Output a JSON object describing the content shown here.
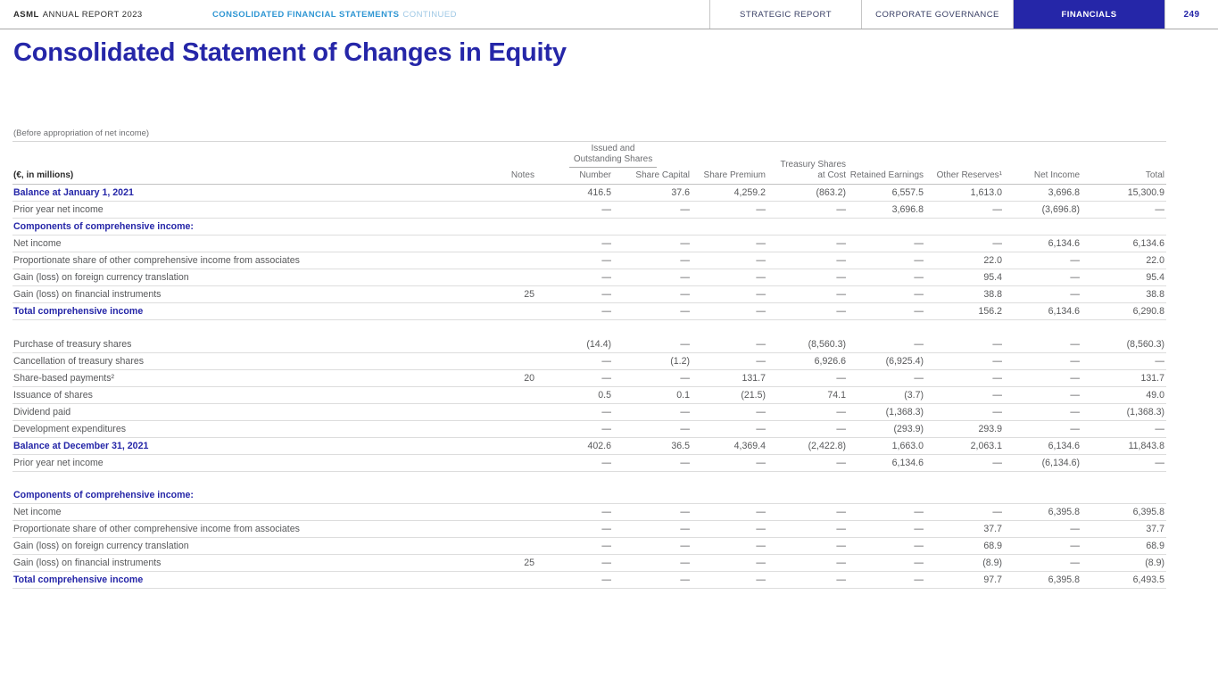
{
  "header": {
    "brand": "ASML",
    "report_name": "ANNUAL REPORT 2023",
    "section_title": "CONSOLIDATED FINANCIAL STATEMENTS",
    "section_continued": "CONTINUED",
    "nav": [
      {
        "label": "STRATEGIC REPORT",
        "active": false
      },
      {
        "label": "CORPORATE GOVERNANCE",
        "active": false
      },
      {
        "label": "FINANCIALS",
        "active": true
      }
    ],
    "page_number": "249"
  },
  "page": {
    "title": "Consolidated Statement of Changes in Equity",
    "pre_table_note": "(Before appropriation of net income)"
  },
  "colors": {
    "brand_blue": "#2526a8",
    "accent_light_blue": "#2f96d3",
    "muted_light_blue": "#9fc8e5",
    "body_gray": "#58595b",
    "hairline_gray": "#dddddd"
  },
  "table": {
    "first_col_header": "(€, in millions)",
    "group_header": {
      "line1": "Issued and",
      "line2": "Outstanding Shares"
    },
    "columns": {
      "notes": "Notes",
      "number": "Number",
      "share_capital": "Share Capital",
      "share_premium": "Share Premium",
      "treasury_line1": "Treasury Shares",
      "treasury_line2": "at Cost",
      "retained_earnings": "Retained Earnings",
      "other_reserves": "Other Reserves¹",
      "net_income": "Net Income",
      "total": "Total"
    },
    "rows": [
      {
        "type": "bold",
        "label": "Balance at January 1, 2021",
        "notes": "",
        "values": [
          "416.5",
          "37.6",
          "4,259.2",
          "(863.2)",
          "6,557.5",
          "1,613.0",
          "3,696.8",
          "15,300.9"
        ]
      },
      {
        "type": "normal",
        "label": "Prior year net income",
        "notes": "",
        "values": [
          "—",
          "—",
          "—",
          "—",
          "3,696.8",
          "—",
          "(3,696.8)",
          "—"
        ]
      },
      {
        "type": "section",
        "label": "Components of comprehensive income:",
        "notes": "",
        "values": [
          "",
          "",
          "",
          "",
          "",
          "",
          "",
          ""
        ]
      },
      {
        "type": "normal",
        "label": "Net income",
        "notes": "",
        "values": [
          "—",
          "—",
          "—",
          "—",
          "—",
          "—",
          "6,134.6",
          "6,134.6"
        ]
      },
      {
        "type": "normal",
        "label": "Proportionate share of other comprehensive income from associates",
        "notes": "",
        "values": [
          "—",
          "—",
          "—",
          "—",
          "—",
          "22.0",
          "—",
          "22.0"
        ]
      },
      {
        "type": "normal",
        "label": "Gain (loss) on foreign currency translation",
        "notes": "",
        "values": [
          "—",
          "—",
          "—",
          "—",
          "—",
          "95.4",
          "—",
          "95.4"
        ]
      },
      {
        "type": "normal",
        "label": "Gain (loss) on financial instruments",
        "notes": "25",
        "values": [
          "—",
          "—",
          "—",
          "—",
          "—",
          "38.8",
          "—",
          "38.8"
        ]
      },
      {
        "type": "bold",
        "label": "Total comprehensive income",
        "notes": "",
        "values": [
          "—",
          "—",
          "—",
          "—",
          "—",
          "156.2",
          "6,134.6",
          "6,290.8"
        ]
      },
      {
        "type": "spacer",
        "label": "",
        "notes": "",
        "values": []
      },
      {
        "type": "normal",
        "label": "Purchase of treasury shares",
        "notes": "",
        "values": [
          "(14.4)",
          "—",
          "—",
          "(8,560.3)",
          "—",
          "—",
          "—",
          "(8,560.3)"
        ]
      },
      {
        "type": "normal",
        "label": "Cancellation of treasury shares",
        "notes": "",
        "values": [
          "—",
          "(1.2)",
          "—",
          "6,926.6",
          "(6,925.4)",
          "—",
          "—",
          "—"
        ]
      },
      {
        "type": "normal",
        "label": "Share-based payments²",
        "notes": "20",
        "values": [
          "—",
          "—",
          "131.7",
          "—",
          "—",
          "—",
          "—",
          "131.7"
        ]
      },
      {
        "type": "normal",
        "label": "Issuance of shares",
        "notes": "",
        "values": [
          "0.5",
          "0.1",
          "(21.5)",
          "74.1",
          "(3.7)",
          "—",
          "—",
          "49.0"
        ]
      },
      {
        "type": "normal",
        "label": "Dividend paid",
        "notes": "",
        "values": [
          "—",
          "—",
          "—",
          "—",
          "(1,368.3)",
          "—",
          "—",
          "(1,368.3)"
        ]
      },
      {
        "type": "normal",
        "label": "Development expenditures",
        "notes": "",
        "values": [
          "—",
          "—",
          "—",
          "—",
          "(293.9)",
          "293.9",
          "—",
          "—"
        ]
      },
      {
        "type": "bold",
        "label": "Balance at December 31, 2021",
        "notes": "",
        "values": [
          "402.6",
          "36.5",
          "4,369.4",
          "(2,422.8)",
          "1,663.0",
          "2,063.1",
          "6,134.6",
          "11,843.8"
        ]
      },
      {
        "type": "normal",
        "label": "Prior year net income",
        "notes": "",
        "values": [
          "—",
          "—",
          "—",
          "—",
          "6,134.6",
          "—",
          "(6,134.6)",
          "—"
        ]
      },
      {
        "type": "spacer",
        "label": "",
        "notes": "",
        "values": []
      },
      {
        "type": "section",
        "label": "Components of comprehensive income:",
        "notes": "",
        "values": [
          "",
          "",
          "",
          "",
          "",
          "",
          "",
          ""
        ]
      },
      {
        "type": "normal",
        "label": "Net income",
        "notes": "",
        "values": [
          "—",
          "—",
          "—",
          "—",
          "—",
          "—",
          "6,395.8",
          "6,395.8"
        ]
      },
      {
        "type": "normal",
        "label": "Proportionate share of other comprehensive income from associates",
        "notes": "",
        "values": [
          "—",
          "—",
          "—",
          "—",
          "—",
          "37.7",
          "—",
          "37.7"
        ]
      },
      {
        "type": "normal",
        "label": "Gain (loss) on foreign currency translation",
        "notes": "",
        "values": [
          "—",
          "—",
          "—",
          "—",
          "—",
          "68.9",
          "—",
          "68.9"
        ]
      },
      {
        "type": "normal",
        "label": "Gain (loss) on financial instruments",
        "notes": "25",
        "values": [
          "—",
          "—",
          "—",
          "—",
          "—",
          "(8.9)",
          "—",
          "(8.9)"
        ]
      },
      {
        "type": "bold",
        "label": "Total comprehensive income",
        "notes": "",
        "values": [
          "—",
          "—",
          "—",
          "—",
          "—",
          "97.7",
          "6,395.8",
          "6,493.5"
        ]
      }
    ]
  }
}
